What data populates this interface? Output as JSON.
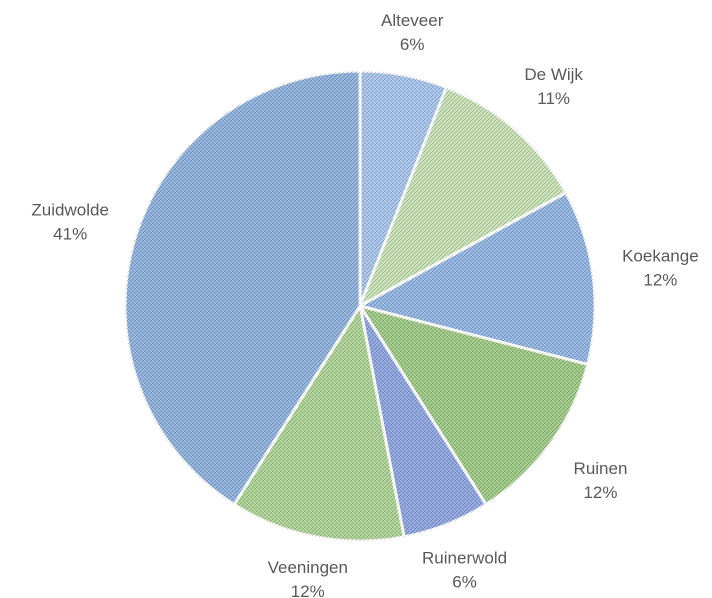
{
  "chart_data": {
    "type": "pie",
    "categories": [
      "Alteveer",
      "De Wijk",
      "Koekange",
      "Ruinen",
      "Ruinerwold",
      "Veeningen",
      "Zuidwolde"
    ],
    "values": [
      6,
      11,
      12,
      12,
      6,
      12,
      41
    ],
    "value_labels": [
      "6%",
      "11%",
      "12%",
      "12%",
      "6%",
      "12%",
      "41%"
    ],
    "colors": [
      "#a9c6ee",
      "#c9e3b6",
      "#92b6e4",
      "#9fcb86",
      "#8ea6e2",
      "#aed595",
      "#8fb3df"
    ]
  }
}
